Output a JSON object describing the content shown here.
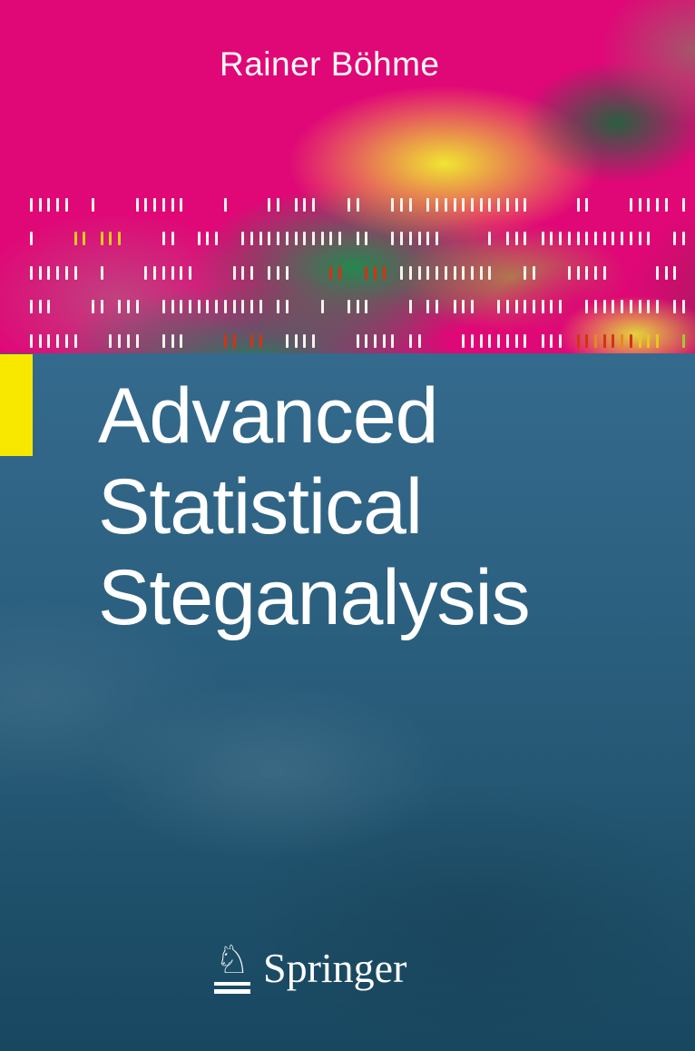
{
  "cover": {
    "author": "Rainer Böhme",
    "title_lines": [
      "Advanced",
      "Statistical",
      "Steganalysis"
    ],
    "publisher": "Springer",
    "horse_glyph": "♘"
  },
  "colors": {
    "magenta": "#e00777",
    "yellow_blob": "#eef02d",
    "green": "#16a254",
    "dark_green": "#0a7a3c",
    "mauve": "#b06a86",
    "olive": "#a98a4e",
    "teal": "#2e6384",
    "teal_dark": "#184760",
    "accent_square": "#f8e800",
    "text_white": "#ffffff",
    "tick_white": "#f7f3ec",
    "tick_yellow": "#e6c91f",
    "tick_red": "#d03415",
    "tick_orange": "#e5891c",
    "tick_green": "#a6c832"
  },
  "tick_rows": [
    "wwwww..w....wwwwww....w....ww.www...ww...www.wwwwwwwwwwww.....ww....wwwww.w",
    "w....yy.yyy....ww..www..wwwwwwwwwwww.ww..wwwwww.....w.www.wwwwwwwwwwwww..ww",
    "wwwwww..w....wwwwww....www.www....rr..rrr.wwwwwwwwwww...ww...wwwww.....www.",
    "www....ww.www..wwwwwwwwwwww.ww...w..www....w.ww.www..wwwwwwww..wwwwwwwww.ww",
    "wwwwww...wwww..www....rr.rr..wwww....wwwww.ww....wwwwwwww.www.rrorroryyy..g"
  ]
}
